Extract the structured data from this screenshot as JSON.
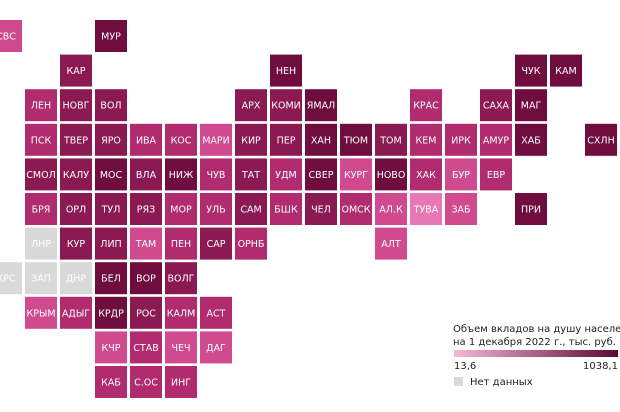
{
  "map": {
    "rows": [
      [
        {
          "label": "СВС",
          "color": "#d04a90"
        },
        null,
        null,
        {
          "label": "МУР",
          "color": "#6e0d3e"
        }
      ],
      [
        null,
        null,
        {
          "label": "КАР",
          "color": "#8c1a52"
        },
        null,
        null,
        null,
        null,
        null,
        {
          "label": "НЕН",
          "color": "#6e0d3e"
        },
        null,
        null,
        null,
        null,
        null,
        null,
        {
          "label": "ЧУК",
          "color": "#6e0d3e"
        },
        {
          "label": "КАМ",
          "color": "#6e0d3e"
        }
      ],
      [
        null,
        {
          "label": "ЛЕН",
          "color": "#b02c6f"
        },
        {
          "label": "НОВГ",
          "color": "#8c1a52"
        },
        {
          "label": "ВОЛ",
          "color": "#8c1a52"
        },
        null,
        null,
        null,
        {
          "label": "АРХ",
          "color": "#8c1a52"
        },
        {
          "label": "КОМИ",
          "color": "#8c1a52"
        },
        {
          "label": "ЯМАЛ",
          "color": "#6e0d3e"
        },
        null,
        null,
        {
          "label": "КРАС",
          "color": "#b02c6f"
        },
        null,
        {
          "label": "САХА",
          "color": "#8c1a52"
        },
        {
          "label": "МАГ",
          "color": "#6e0d3e"
        }
      ],
      [
        null,
        {
          "label": "ПСК",
          "color": "#b02c6f"
        },
        {
          "label": "ТВЕР",
          "color": "#8c1a52"
        },
        {
          "label": "ЯРО",
          "color": "#8c1a52"
        },
        {
          "label": "ИВА",
          "color": "#b02c6f"
        },
        {
          "label": "КОС",
          "color": "#b02c6f"
        },
        {
          "label": "МАРИ",
          "color": "#d04a90"
        },
        {
          "label": "КИР",
          "color": "#8c1a52"
        },
        {
          "label": "ПЕР",
          "color": "#8c1a52"
        },
        {
          "label": "ХАН",
          "color": "#6e0d3e"
        },
        {
          "label": "ТЮМ",
          "color": "#6e0d3e"
        },
        {
          "label": "ТОМ",
          "color": "#8c1a52"
        },
        {
          "label": "КЕМ",
          "color": "#b02c6f"
        },
        {
          "label": "ИРК",
          "color": "#b02c6f"
        },
        {
          "label": "АМУР",
          "color": "#b02c6f"
        },
        {
          "label": "ХАБ",
          "color": "#6e0d3e"
        },
        null,
        {
          "label": "СХЛН",
          "color": "#6e0d3e"
        }
      ],
      [
        null,
        {
          "label": "СМОЛ",
          "color": "#8c1a52"
        },
        {
          "label": "КАЛУ",
          "color": "#8c1a52"
        },
        {
          "label": "МОС",
          "color": "#6e0d3e"
        },
        {
          "label": "ВЛА",
          "color": "#8c1a52"
        },
        {
          "label": "НИЖ",
          "color": "#6e0d3e"
        },
        {
          "label": "ЧУВ",
          "color": "#b02c6f"
        },
        {
          "label": "ТАТ",
          "color": "#8c1a52"
        },
        {
          "label": "УДМ",
          "color": "#b02c6f"
        },
        {
          "label": "СВЕР",
          "color": "#6e0d3e"
        },
        {
          "label": "КУРГ",
          "color": "#d04a90"
        },
        {
          "label": "НОВО",
          "color": "#6e0d3e"
        },
        {
          "label": "ХАК",
          "color": "#b02c6f"
        },
        {
          "label": "БУР",
          "color": "#d04a90"
        },
        {
          "label": "ЕВР",
          "color": "#b02c6f"
        }
      ],
      [
        null,
        {
          "label": "БРЯ",
          "color": "#b02c6f"
        },
        {
          "label": "ОРЛ",
          "color": "#8c1a52"
        },
        {
          "label": "ТУЛ",
          "color": "#8c1a52"
        },
        {
          "label": "РЯЗ",
          "color": "#8c1a52"
        },
        {
          "label": "МОР",
          "color": "#b02c6f"
        },
        {
          "label": "УЛЬ",
          "color": "#b02c6f"
        },
        {
          "label": "САМ",
          "color": "#8c1a52"
        },
        {
          "label": "БШК",
          "color": "#b02c6f"
        },
        {
          "label": "ЧЕЛ",
          "color": "#8c1a52"
        },
        {
          "label": "ОМСК",
          "color": "#b02c6f"
        },
        {
          "label": "АЛ.К",
          "color": "#d04a90"
        },
        {
          "label": "ТУВА",
          "color": "#e878b4"
        },
        {
          "label": "ЗАБ",
          "color": "#d04a90"
        },
        null,
        {
          "label": "ПРИ",
          "color": "#6e0d3e"
        }
      ],
      [
        null,
        {
          "label": "ЛНР",
          "color": "#d9d9d9"
        },
        {
          "label": "КУР",
          "color": "#8c1a52"
        },
        {
          "label": "ЛИП",
          "color": "#8c1a52"
        },
        {
          "label": "ТАМ",
          "color": "#d04a90"
        },
        {
          "label": "ПЕН",
          "color": "#b02c6f"
        },
        {
          "label": "САР",
          "color": "#8c1a52"
        },
        {
          "label": "ОРНБ",
          "color": "#b02c6f"
        },
        null,
        null,
        null,
        {
          "label": "АЛТ",
          "color": "#d04a90"
        }
      ],
      [
        {
          "label": "КРС",
          "color": "#d9d9d9"
        },
        {
          "label": "ЗАП",
          "color": "#d9d9d9"
        },
        {
          "label": "ДНР",
          "color": "#d9d9d9"
        },
        {
          "label": "БЕЛ",
          "color": "#6e0d3e"
        },
        {
          "label": "ВОР",
          "color": "#6e0d3e"
        },
        {
          "label": "ВОЛГ",
          "color": "#8c1a52"
        }
      ],
      [
        null,
        {
          "label": "КРЫМ",
          "color": "#d04a90"
        },
        {
          "label": "АДЫГ",
          "color": "#b02c6f"
        },
        {
          "label": "КРДР",
          "color": "#6e0d3e"
        },
        {
          "label": "РОС",
          "color": "#8c1a52"
        },
        {
          "label": "КАЛМ",
          "color": "#b02c6f"
        },
        {
          "label": "АСТ",
          "color": "#b02c6f"
        }
      ],
      [
        null,
        null,
        null,
        {
          "label": "КЧР",
          "color": "#d04a90"
        },
        {
          "label": "СТАВ",
          "color": "#b02c6f"
        },
        {
          "label": "ЧЕЧ",
          "color": "#d04a90"
        },
        {
          "label": "ДАГ",
          "color": "#d04a90"
        }
      ],
      [
        null,
        null,
        null,
        {
          "label": "КАБ",
          "color": "#b02c6f"
        },
        {
          "label": "С.ОС",
          "color": "#b02c6f"
        },
        {
          "label": "ИНГ",
          "color": "#b02c6f"
        }
      ]
    ],
    "legend": {
      "title_line1": "Объем вкладов на душу населения",
      "title_line2": "на 1 декабря 2022 г., тыс. руб.",
      "min_label": "13,6",
      "max_label": "1038,1",
      "gradient": [
        "#f5b8d8",
        "#5c0a33"
      ],
      "no_data_label": "Нет данных",
      "no_data_color": "#d9d9d9"
    }
  }
}
